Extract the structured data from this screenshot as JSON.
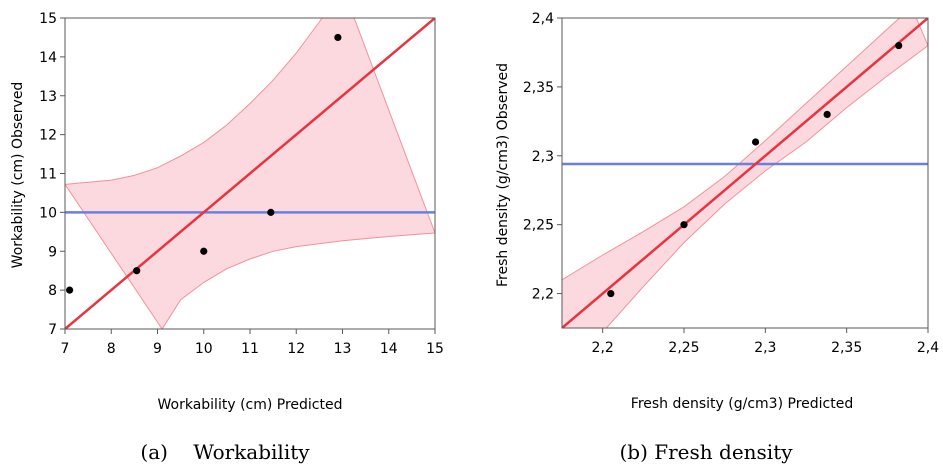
{
  "chart_data": [
    {
      "type": "scatter",
      "title": "",
      "caption": "(a)    Workability",
      "xlabel": "Workability (cm) Predicted",
      "ylabel": "Workability (cm) Observed",
      "xlim": [
        7,
        15
      ],
      "ylim": [
        7,
        15
      ],
      "xticks": [
        "7",
        "8",
        "9",
        "10",
        "11",
        "12",
        "13",
        "14",
        "15"
      ],
      "yticks": [
        "7",
        "8",
        "9",
        "10",
        "11",
        "12",
        "13",
        "14",
        "15"
      ],
      "xtick_values": [
        7,
        8,
        9,
        10,
        11,
        12,
        13,
        14,
        15
      ],
      "ytick_values": [
        7,
        8,
        9,
        10,
        11,
        12,
        13,
        14,
        15
      ],
      "points": [
        {
          "x": 7.1,
          "y": 8.0
        },
        {
          "x": 8.55,
          "y": 8.5
        },
        {
          "x": 10.0,
          "y": 9.0
        },
        {
          "x": 11.45,
          "y": 10.0
        },
        {
          "x": 12.9,
          "y": 14.5
        }
      ],
      "fit_line": [
        [
          7,
          7
        ],
        [
          15,
          15
        ]
      ],
      "mean_line": 10.0,
      "confidence_upper": [
        [
          7,
          10.72
        ],
        [
          8,
          10.83
        ],
        [
          8.5,
          10.95
        ],
        [
          9,
          11.15
        ],
        [
          9.5,
          11.45
        ],
        [
          10,
          11.8
        ],
        [
          10.5,
          12.25
        ],
        [
          11,
          12.8
        ],
        [
          11.5,
          13.4
        ],
        [
          12,
          14.1
        ],
        [
          12.5,
          14.9
        ],
        [
          13,
          15.8
        ]
      ],
      "confidence_lower": [
        [
          9.1,
          7.0
        ],
        [
          9.5,
          7.75
        ],
        [
          10,
          8.2
        ],
        [
          10.5,
          8.55
        ],
        [
          11,
          8.8
        ],
        [
          11.5,
          9.0
        ],
        [
          12,
          9.12
        ],
        [
          13,
          9.27
        ],
        [
          14,
          9.38
        ],
        [
          15,
          9.47
        ]
      ],
      "colors": {
        "fit": "#e8343f",
        "mean": "#6a80e0",
        "band": "#fbd9de",
        "band_edge": "#f4909c",
        "point": "#000000"
      },
      "grid": false
    },
    {
      "type": "scatter",
      "title": "",
      "caption": "(b) Fresh density",
      "xlabel": "Fresh density (g/cm3) Predicted",
      "ylabel": "Fresh density (g/cm3) Observed",
      "xlim": [
        2.175,
        2.4
      ],
      "ylim": [
        2.175,
        2.4
      ],
      "xticks": [
        "2,2",
        "2,25",
        "2,3",
        "2,35",
        "2,4"
      ],
      "yticks": [
        "2,2",
        "2,25",
        "2,3",
        "2,35",
        "2,4"
      ],
      "xtick_values": [
        2.2,
        2.25,
        2.3,
        2.35,
        2.4
      ],
      "ytick_values": [
        2.2,
        2.25,
        2.3,
        2.35,
        2.4
      ],
      "points": [
        {
          "x": 2.205,
          "y": 2.2
        },
        {
          "x": 2.25,
          "y": 2.25
        },
        {
          "x": 2.294,
          "y": 2.31
        },
        {
          "x": 2.338,
          "y": 2.33
        },
        {
          "x": 2.382,
          "y": 2.38
        }
      ],
      "fit_line": [
        [
          2.175,
          2.175
        ],
        [
          2.4,
          2.4
        ]
      ],
      "mean_line": 2.294,
      "confidence_upper": [
        [
          2.175,
          2.21
        ],
        [
          2.2,
          2.228
        ],
        [
          2.225,
          2.245
        ],
        [
          2.25,
          2.263
        ],
        [
          2.275,
          2.285
        ],
        [
          2.3,
          2.311
        ],
        [
          2.325,
          2.338
        ],
        [
          2.35,
          2.365
        ],
        [
          2.375,
          2.392
        ],
        [
          2.39,
          2.408
        ]
      ],
      "confidence_lower": [
        [
          2.175,
          2.14
        ],
        [
          2.2,
          2.172
        ],
        [
          2.225,
          2.205
        ],
        [
          2.25,
          2.237
        ],
        [
          2.275,
          2.265
        ],
        [
          2.3,
          2.289
        ],
        [
          2.325,
          2.31
        ],
        [
          2.35,
          2.335
        ],
        [
          2.375,
          2.358
        ],
        [
          2.4,
          2.38
        ]
      ],
      "colors": {
        "fit": "#e8343f",
        "mean": "#6a80e0",
        "band": "#fbd9de",
        "band_edge": "#f4909c",
        "point": "#000000"
      },
      "grid": false
    }
  ]
}
